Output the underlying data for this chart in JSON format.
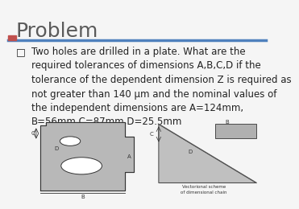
{
  "title": "Problem",
  "title_color": "#5a5a5a",
  "title_fontsize": 18,
  "background_color": "#f5f5f5",
  "accent_bar_color": "#c0504d",
  "header_line_color": "#4f81bd",
  "bullet_text": "Two holes are drilled in a plate. What are the\nrequired tolerances of dimensions A,B,C,D if the\ntolerance of the dependent dimension Z is required as\nnot greater than 140 μm and the nominal values of\nthe independent dimensions are A=124mm,\nB=56mm,C=87mm,D=25.5mm",
  "bullet_fontsize": 8.5,
  "text_color": "#222222",
  "image_bg": "#d0d0d0"
}
